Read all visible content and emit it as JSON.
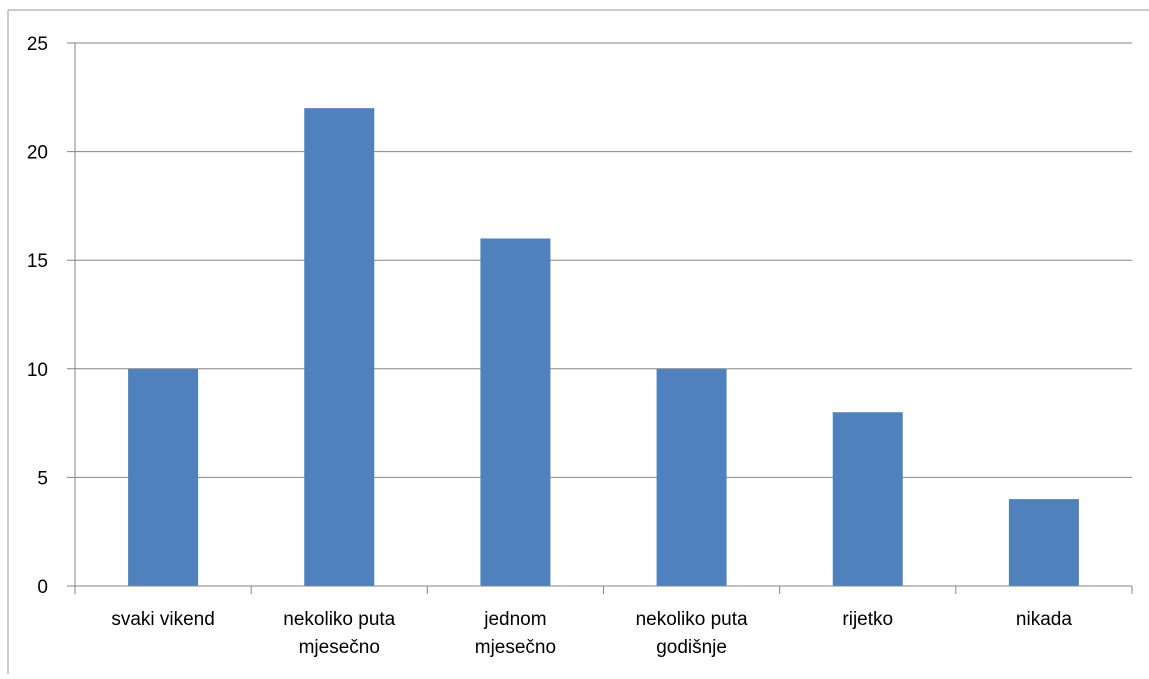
{
  "chart_data": {
    "type": "bar",
    "categories": [
      [
        "svaki vikend"
      ],
      [
        "nekoliko puta",
        "mjesečno"
      ],
      [
        "jednom",
        "mjesečno"
      ],
      [
        "nekoliko puta",
        "godišnje"
      ],
      [
        "rijetko"
      ],
      [
        "nikada"
      ]
    ],
    "values": [
      10,
      22,
      16,
      10,
      8,
      4
    ],
    "ylim": [
      0,
      25
    ],
    "yticks": [
      0,
      5,
      10,
      15,
      20,
      25
    ],
    "grid": true,
    "bar_color": "#4F81BD",
    "grid_color": "#868686",
    "axis_color": "#868686"
  }
}
